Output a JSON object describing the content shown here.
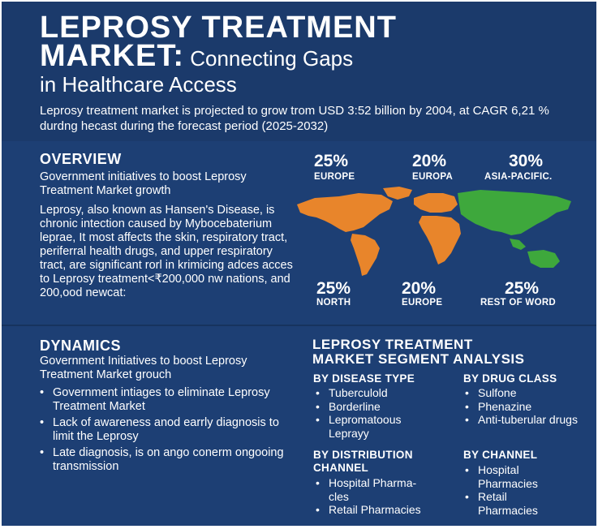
{
  "header": {
    "title_line1": "LEPROSY TREATMENT",
    "title_line2_bold": "MARKET:",
    "title_line2_rest": " Connecting Gaps",
    "title_line3": "in Healthcare Access",
    "subtitle": "Leprosy treatment market is projected to grow trom USD 3:52 billion by 2004, at CAGR 6,21 % durdng hecast during the forecast period (2025-2032)"
  },
  "overview": {
    "heading": "OVERVIEW",
    "lead": "Government initiatives to boost Leprosy Treatment Market growth",
    "body": "Leprosy, also known as Hansen's Disease, is chronic intection caused by Mybocebaterium leprae, It most affects the skin, respiratory tract, periferral health drugs, and upper respiratory tract, are significant rorl in krimicing adces acces to Leprosy treatment<₹200,000 nw nations, and 200,ood newcat:"
  },
  "regions": {
    "top": [
      {
        "pct": "25%",
        "label": "EUROPE"
      },
      {
        "pct": "20%",
        "label": "EUROPA"
      },
      {
        "pct": "30%",
        "label": "ASIA-PACIFIC."
      }
    ],
    "bottom": [
      {
        "pct": "25%",
        "label": "NORTH"
      },
      {
        "pct": "20%",
        "label": "EUROPE"
      },
      {
        "pct": "25%",
        "label": "REST OF WORD"
      }
    ]
  },
  "map_colors": {
    "americas_europe_africa": "#e8852b",
    "asia_oceania": "#3ea83c"
  },
  "dynamics": {
    "heading": "DYNAMICS",
    "lead": "Government Initiatives to boost Leprosy Treatment Market grouch",
    "bullets": [
      "Government intiages to eliminate Leprosy Treatment Market",
      "Lack of awareness anod earrly diagnosis to limit the Leprosy",
      "Late diagnosis, is on ango conerm ongooing transmission"
    ]
  },
  "segment": {
    "heading_line1": "LEPROSY TREATMENT",
    "heading_line2": "MARKET SEGMENT ANALYSIS",
    "disease_type": {
      "title": "BY DISEASE TYPE",
      "items": [
        "Tuberculold",
        "Borderline",
        "Lepromatoous Leprayy"
      ]
    },
    "drug_class": {
      "title": "BY DRUG CLASS",
      "items": [
        "Sulfone",
        "Phenazine",
        "Anti-tuberular drugs"
      ]
    },
    "distribution": {
      "title": "BY DISTRIBUTION CHANNEL",
      "items": [
        "Hospital Pharma-cles",
        "Retail Pharmacies"
      ]
    },
    "channel": {
      "title": "BY CHANNEL",
      "items": [
        "Hospital Pharmacies",
        "Retail Pharmacies"
      ]
    }
  }
}
